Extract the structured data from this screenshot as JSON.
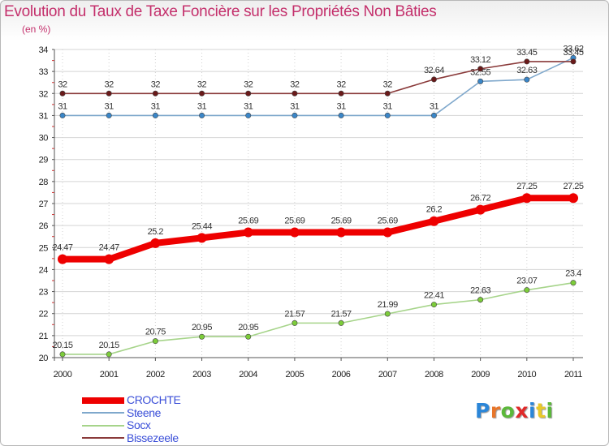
{
  "header": {
    "title": "Evolution du Taux de Taxe Foncière sur les Propriétés Non Bâties",
    "unit": "(en %)"
  },
  "logo": {
    "text": "Proxiti"
  },
  "chart_data": {
    "type": "line",
    "title": "Evolution du Taux de Taxe Foncière sur les Propriétés Non Bâties",
    "ylabel": "(en %)",
    "xlabel": "",
    "x": [
      "2000",
      "2001",
      "2002",
      "2003",
      "2004",
      "2005",
      "2006",
      "2007",
      "2008",
      "2009",
      "2010",
      "2011"
    ],
    "ylim": [
      20,
      34
    ],
    "yticks": [
      20,
      21,
      22,
      23,
      24,
      25,
      26,
      27,
      28,
      29,
      30,
      31,
      32,
      33,
      34
    ],
    "legend_position": "bottom-left",
    "series": [
      {
        "name": "CROCHTE",
        "color": "#ee0000",
        "dot": "#ee0000",
        "emphasis": true,
        "values": [
          24.47,
          24.47,
          25.2,
          25.44,
          25.69,
          25.69,
          25.69,
          25.69,
          26.2,
          26.72,
          27.25,
          27.25
        ]
      },
      {
        "name": "Steene",
        "color": "#7fa8cc",
        "dot": "#3a86c8",
        "emphasis": false,
        "values": [
          31,
          31,
          31,
          31,
          31,
          31,
          31,
          31,
          31,
          32.55,
          32.63,
          33.62
        ]
      },
      {
        "name": "Socx",
        "color": "#a6d48a",
        "dot": "#7ccc3a",
        "emphasis": false,
        "values": [
          20.15,
          20.15,
          20.75,
          20.95,
          20.95,
          21.57,
          21.57,
          21.99,
          22.41,
          22.63,
          23.07,
          23.4
        ]
      },
      {
        "name": "Bissezeele",
        "color": "#8a3a3a",
        "dot": "#6a1a1a",
        "emphasis": false,
        "values": [
          32,
          32,
          32,
          32,
          32,
          32,
          32,
          32,
          32.64,
          33.12,
          33.45,
          33.45
        ]
      }
    ]
  }
}
